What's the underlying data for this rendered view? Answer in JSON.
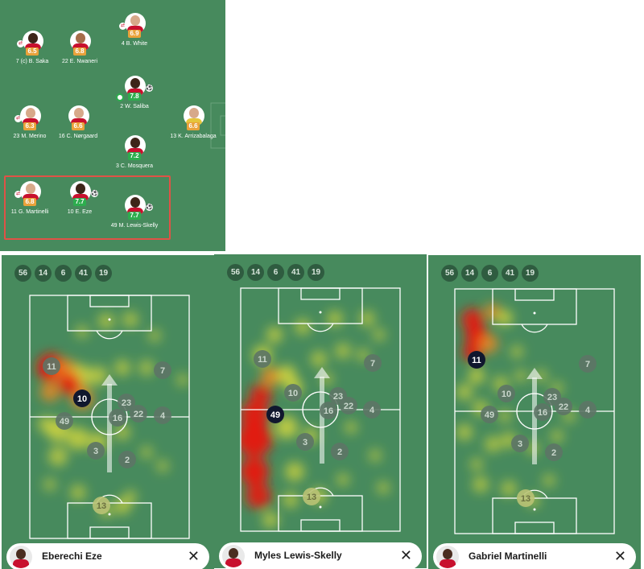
{
  "lineup": {
    "players": [
      {
        "id": "white",
        "number": "4",
        "name": "B. White",
        "rating": "6.9",
        "rating_color": "orange",
        "skin": "light",
        "sub_icon": "⇄",
        "ball_icon": "",
        "motm": false
      },
      {
        "id": "saka",
        "number": "7",
        "name": "(c) B. Saka",
        "rating": "6.5",
        "rating_color": "orange",
        "skin": "dark",
        "sub_icon": "⇄",
        "ball_icon": "",
        "motm": false
      },
      {
        "id": "nwaneri",
        "number": "22",
        "name": "E. Nwaneri",
        "rating": "6.8",
        "rating_color": "orange",
        "skin": "mid",
        "sub_icon": "",
        "ball_icon": "",
        "motm": false
      },
      {
        "id": "saliba",
        "number": "2",
        "name": "W. Saliba",
        "rating": "7.8",
        "rating_color": "green",
        "skin": "dark",
        "sub_icon": "",
        "ball_icon": "⚽",
        "motm": true
      },
      {
        "id": "merino",
        "number": "23",
        "name": "M. Merino",
        "rating": "6.3",
        "rating_color": "orange",
        "skin": "light",
        "sub_icon": "⇄",
        "ball_icon": "",
        "motm": false
      },
      {
        "id": "norgaard",
        "number": "16",
        "name": "C. Nørgaard",
        "rating": "6.6",
        "rating_color": "orange",
        "skin": "light",
        "sub_icon": "",
        "ball_icon": "",
        "motm": false
      },
      {
        "id": "arrizabalaga",
        "number": "13",
        "name": "K. Arrizabalaga",
        "rating": "6.6",
        "rating_color": "orange",
        "skin": "light",
        "sub_icon": "",
        "ball_icon": "",
        "motm": false,
        "gk": true
      },
      {
        "id": "mosquera",
        "number": "3",
        "name": "C. Mosquera",
        "rating": "7.2",
        "rating_color": "green",
        "skin": "dark",
        "sub_icon": "",
        "ball_icon": "",
        "motm": false
      },
      {
        "id": "martinelli",
        "number": "11",
        "name": "G. Martinelli",
        "rating": "6.8",
        "rating_color": "orange",
        "skin": "light",
        "sub_icon": "⇄",
        "ball_icon": "",
        "motm": false
      },
      {
        "id": "eze",
        "number": "10",
        "name": "E. Eze",
        "rating": "7.7",
        "rating_color": "green",
        "skin": "dark",
        "sub_icon": "",
        "ball_icon": "⚽",
        "motm": false
      },
      {
        "id": "lewis-skelly",
        "number": "49",
        "name": "M. Lewis-Skelly",
        "rating": "7.7",
        "rating_color": "green",
        "skin": "dark",
        "sub_icon": "",
        "ball_icon": "⚽",
        "motm": false
      }
    ]
  },
  "heatmaps": {
    "filter_chips": [
      "56",
      "14",
      "6",
      "41",
      "19"
    ],
    "eze": {
      "player_name": "Eberechi Eze",
      "highlighted": "10",
      "close_icon": "✕"
    },
    "lewis_skelly": {
      "player_name": "Myles Lewis-Skelly",
      "highlighted": "49",
      "close_icon": "✕"
    },
    "martinelli": {
      "player_name": "Gabriel Martinelli",
      "highlighted": "11",
      "close_icon": "✕"
    },
    "marker_labels": [
      "11",
      "10",
      "49",
      "23",
      "16",
      "22",
      "4",
      "7",
      "3",
      "2",
      "13"
    ],
    "colors": {
      "pitch": "#478a5d",
      "marker": "#5d7466",
      "marker_highlight": "#10172e",
      "marker_gk": "#b9c274",
      "heat_low": "#f4e936",
      "heat_high": "#e8190f"
    }
  }
}
